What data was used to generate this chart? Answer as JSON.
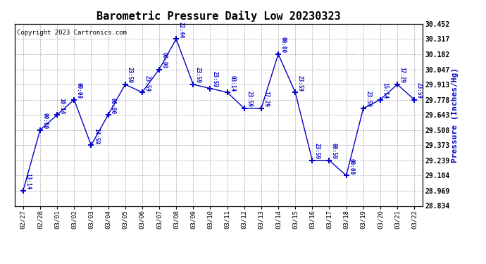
{
  "title": "Barometric Pressure Daily Low 20230323",
  "ylabel": "Pressure (Inches/Hg)",
  "copyright": "Copyright 2023 Cartronics.com",
  "line_color": "#0000CC",
  "bg_color": "#FFFFFF",
  "grid_color": "#AAAAAA",
  "dates": [
    "02/27",
    "02/28",
    "03/01",
    "03/02",
    "03/03",
    "03/04",
    "03/05",
    "03/06",
    "03/07",
    "03/08",
    "03/09",
    "03/10",
    "03/11",
    "03/12",
    "03/13",
    "03/14",
    "03/15",
    "03/16",
    "03/17",
    "03/18",
    "03/19",
    "03/20",
    "03/21",
    "03/22"
  ],
  "values": [
    28.969,
    29.508,
    29.643,
    29.778,
    29.373,
    29.643,
    29.913,
    29.843,
    30.047,
    30.317,
    29.913,
    29.878,
    29.843,
    29.7,
    29.7,
    30.182,
    29.843,
    29.239,
    29.239,
    29.104,
    29.7,
    29.778,
    29.913,
    29.778
  ],
  "point_labels": [
    "13:14",
    "00:00",
    "16:14",
    "00:00",
    "14:59",
    "00:00",
    "23:59",
    "23:59",
    "00:00",
    "22:44",
    "23:59",
    "23:59",
    "03:14",
    "23:59",
    "17:29",
    "00:00",
    "23:59",
    "23:59",
    "00:59",
    "00:00",
    "23:59",
    "15:14",
    "17:29",
    "23:59"
  ],
  "ylim_min": 28.834,
  "ylim_max": 30.452,
  "yticks": [
    28.834,
    28.969,
    29.104,
    29.239,
    29.373,
    29.508,
    29.643,
    29.778,
    29.913,
    30.047,
    30.182,
    30.317,
    30.452
  ]
}
